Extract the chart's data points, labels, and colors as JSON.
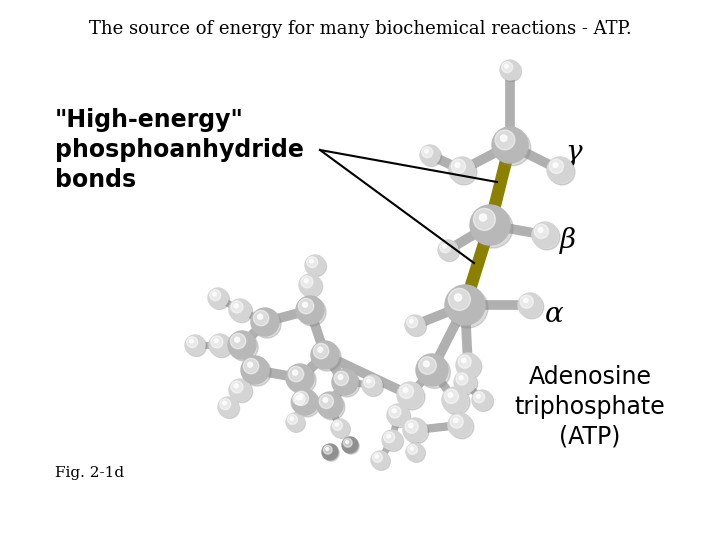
{
  "title": "The source of energy for many biochemical reactions - ATP.",
  "title_fontsize": 13,
  "fig_caption": "Fig. 2-1d",
  "caption_fontsize": 11,
  "label_high_energy": "\"High-energy\"\nphosphoanhydride\nbonds",
  "label_high_energy_fontsize": 17,
  "label_gamma": "γ",
  "label_beta": "β",
  "label_alpha": "α",
  "label_adenosine": "Adenosine\ntriphosphate\n(ATP)",
  "label_adenosine_fontsize": 17,
  "greek_fontsize": 18,
  "background_color": "#ffffff",
  "sphere_color_light": "#d4d4d4",
  "sphere_color_mid": "#b8b8b8",
  "sphere_color_dark": "#909090",
  "bond_color_yellow": "#8b8000",
  "bond_color_gray": "#b0b0b0",
  "text_color": "#000000",
  "arrow_color": "#000000"
}
